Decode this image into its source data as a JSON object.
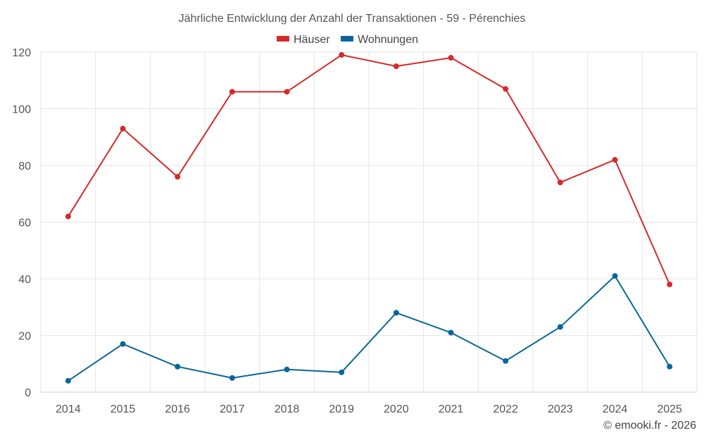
{
  "chart_data": {
    "type": "line",
    "title": "Jährliche Entwicklung der Anzahl der Transaktionen - 59 - Pérenchies",
    "categories": [
      "2014",
      "2015",
      "2016",
      "2017",
      "2018",
      "2019",
      "2020",
      "2021",
      "2022",
      "2023",
      "2024",
      "2025"
    ],
    "series": [
      {
        "name": "Häuser",
        "color": "#d42a2a",
        "values": [
          62,
          93,
          76,
          106,
          106,
          119,
          115,
          118,
          107,
          74,
          82,
          38
        ]
      },
      {
        "name": "Wohnungen",
        "color": "#0a6699",
        "values": [
          4,
          17,
          9,
          5,
          8,
          7,
          28,
          21,
          11,
          23,
          41,
          9
        ]
      }
    ],
    "ylim": [
      0,
      120
    ],
    "yticks": [
      0,
      20,
      40,
      60,
      80,
      100,
      120
    ],
    "grid": true,
    "legend": "top-center",
    "credit": "© emooki.fr - 2026"
  }
}
